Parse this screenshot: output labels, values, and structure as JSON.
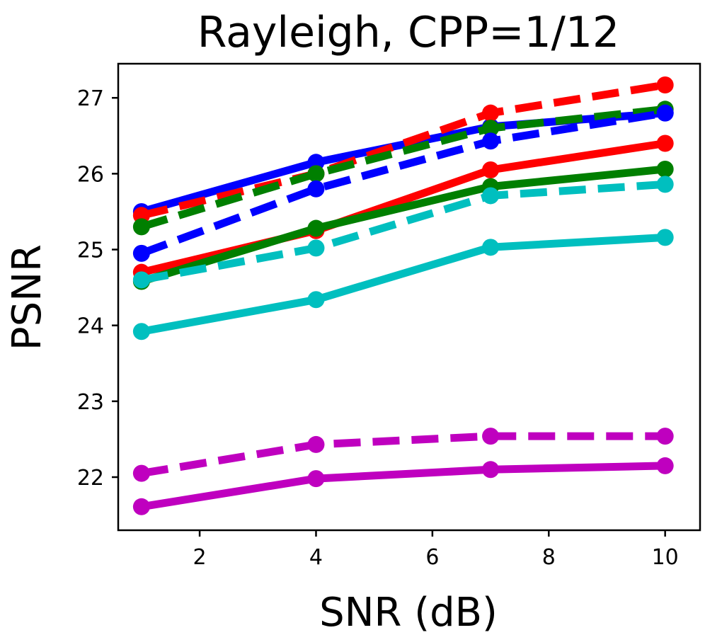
{
  "chart_data": {
    "type": "line",
    "title": "Rayleigh, CPP=1/12",
    "xlabel": "SNR (dB)",
    "ylabel": "PSNR",
    "xlim": [
      0.6,
      10.6
    ],
    "ylim": [
      21.3,
      27.45
    ],
    "xticks": [
      2,
      4,
      6,
      8,
      10
    ],
    "yticks": [
      22,
      23,
      24,
      25,
      26,
      27
    ],
    "grid": false,
    "x": [
      1,
      4,
      7,
      10
    ],
    "series": [
      {
        "name": "blue-solid",
        "color": "#0000ff",
        "dash": "solid",
        "values": [
          25.5,
          26.15,
          26.62,
          26.8
        ]
      },
      {
        "name": "red-dashed",
        "color": "#ff0000",
        "dash": "dashed",
        "values": [
          25.45,
          26.0,
          26.8,
          27.17
        ]
      },
      {
        "name": "green-dashed",
        "color": "#007f00",
        "dash": "dashed",
        "values": [
          25.3,
          26.0,
          26.6,
          26.85
        ]
      },
      {
        "name": "blue-dashed",
        "color": "#0000ff",
        "dash": "dashed",
        "values": [
          24.95,
          25.8,
          26.43,
          26.8
        ]
      },
      {
        "name": "red-solid",
        "color": "#ff0000",
        "dash": "solid",
        "values": [
          24.7,
          25.25,
          26.05,
          26.4
        ]
      },
      {
        "name": "green-solid",
        "color": "#007f00",
        "dash": "solid",
        "values": [
          24.58,
          25.28,
          25.83,
          26.06
        ]
      },
      {
        "name": "cyan-dashed",
        "color": "#00bfbf",
        "dash": "dashed",
        "values": [
          24.6,
          25.02,
          25.71,
          25.86
        ]
      },
      {
        "name": "cyan-solid",
        "color": "#00bfbf",
        "dash": "solid",
        "values": [
          23.92,
          24.34,
          25.03,
          25.16
        ]
      },
      {
        "name": "magenta-dashed",
        "color": "#bf00bf",
        "dash": "dashed",
        "values": [
          22.05,
          22.43,
          22.54,
          22.54
        ]
      },
      {
        "name": "magenta-solid",
        "color": "#bf00bf",
        "dash": "solid",
        "values": [
          21.61,
          21.98,
          22.1,
          22.15
        ]
      }
    ]
  }
}
